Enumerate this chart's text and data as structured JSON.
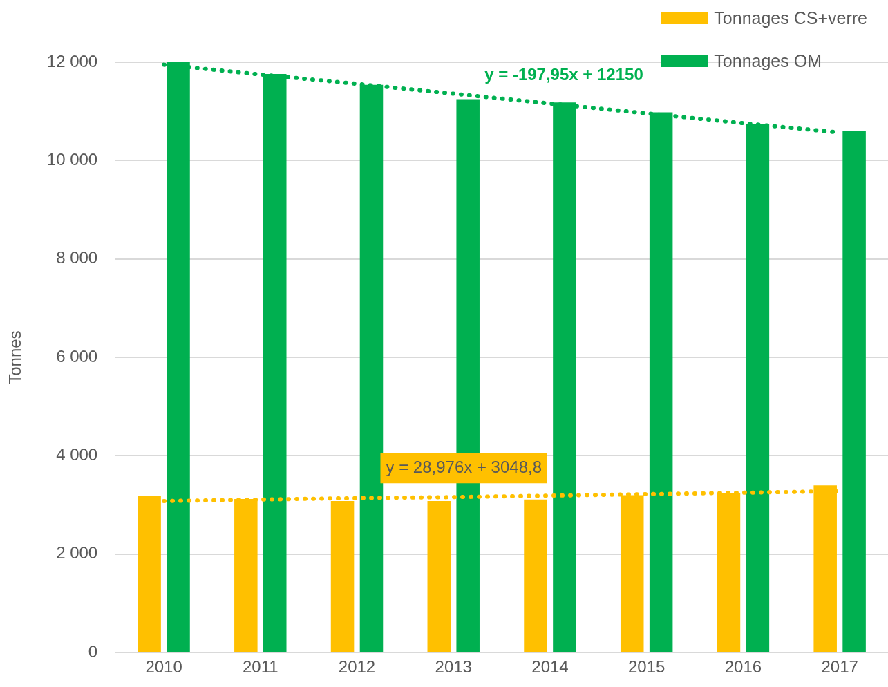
{
  "chart_data": {
    "type": "bar",
    "ylabel": "Tonnes",
    "categories": [
      "2010",
      "2011",
      "2012",
      "2013",
      "2014",
      "2015",
      "2016",
      "2017"
    ],
    "series": [
      {
        "name": "Tonnages CS+verre",
        "color": "#ffc000",
        "values": [
          3180,
          3120,
          3080,
          3080,
          3110,
          3200,
          3240,
          3400
        ]
      },
      {
        "name": "Tonnages OM",
        "color": "#00b050",
        "values": [
          12000,
          11760,
          11540,
          11250,
          11180,
          10980,
          10740,
          10600
        ]
      },
      {
        "type": "line",
        "color": "#ffc000",
        "line_style": "dotted",
        "values": [
          3080,
          3110,
          3140,
          3160,
          3190,
          3220,
          3250,
          3280
        ]
      },
      {
        "type": "line",
        "color": "#00b050",
        "line_style": "dotted",
        "values": [
          11950,
          11750,
          11560,
          11360,
          11160,
          10960,
          10760,
          10570
        ]
      }
    ],
    "ylim": [
      0,
      12000
    ],
    "yticks": [
      {
        "value": 0,
        "label": "0"
      },
      {
        "value": 2000,
        "label": "2 000"
      },
      {
        "value": 4000,
        "label": "4 000"
      },
      {
        "value": 6000,
        "label": "6 000"
      },
      {
        "value": 8000,
        "label": "8 000"
      },
      {
        "value": 10000,
        "label": "10 000"
      },
      {
        "value": 12000,
        "label": "12 000"
      }
    ],
    "grid": "y",
    "legend": "top right",
    "marker": "none",
    "annotations": [
      "y = 28,976x + 3048,8",
      "y = -197,95x + 12150"
    ]
  }
}
